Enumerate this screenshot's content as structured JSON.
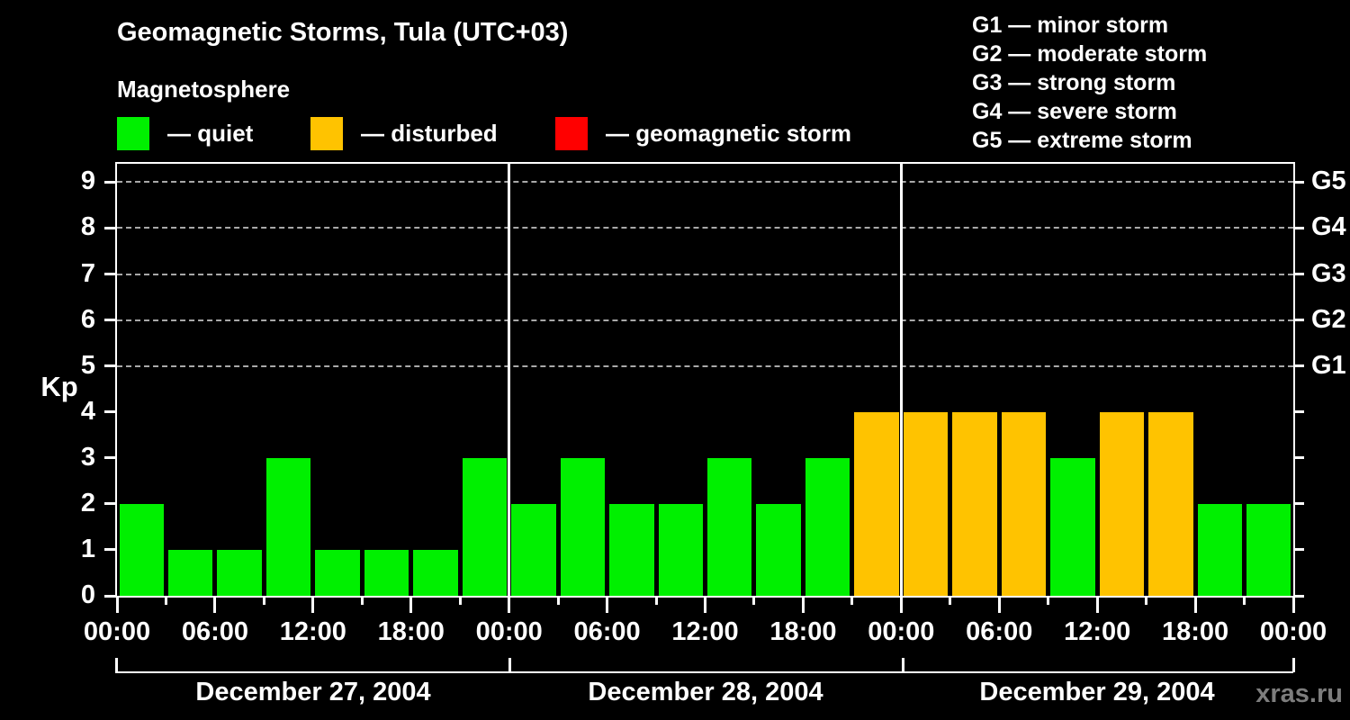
{
  "title": "Geomagnetic Storms, Tula (UTC+03)",
  "subtitle": "Magnetosphere",
  "legend": {
    "items": [
      {
        "label": "— quiet",
        "state": "quiet",
        "color": "#00f000"
      },
      {
        "label": "— disturbed",
        "state": "disturbed",
        "color": "#ffc300"
      },
      {
        "label": "— geomagnetic storm",
        "state": "storm",
        "color": "#ff0000"
      }
    ]
  },
  "g_scale_legend": [
    "G1 — minor storm",
    "G2 — moderate storm",
    "G3 — strong storm",
    "G4 — severe storm",
    "G5 — extreme storm"
  ],
  "watermark": "xras.ru",
  "chart_data": {
    "type": "bar",
    "title": "Geomagnetic Storms, Tula (UTC+03)",
    "ylabel": "Kp",
    "ylim": [
      0,
      9.4
    ],
    "yticks": [
      0,
      1,
      2,
      3,
      4,
      5,
      6,
      7,
      8,
      9
    ],
    "gridlines_kp": [
      5,
      6,
      7,
      8,
      9
    ],
    "grid": "dashed horizontal at G-storm levels only",
    "right_axis_labels": [
      {
        "label": "G1",
        "kp": 5
      },
      {
        "label": "G2",
        "kp": 6
      },
      {
        "label": "G3",
        "kp": 7
      },
      {
        "label": "G4",
        "kp": 8
      },
      {
        "label": "G5",
        "kp": 9
      }
    ],
    "x_tick_labels": [
      "00:00",
      "06:00",
      "12:00",
      "18:00",
      "00:00",
      "06:00",
      "12:00",
      "18:00",
      "00:00",
      "06:00",
      "12:00",
      "18:00",
      "00:00"
    ],
    "hours_per_bar": 3,
    "days": [
      {
        "date": "December 27, 2004",
        "values": [
          2,
          1,
          1,
          3,
          1,
          1,
          1,
          3
        ],
        "states": [
          "quiet",
          "quiet",
          "quiet",
          "quiet",
          "quiet",
          "quiet",
          "quiet",
          "quiet"
        ]
      },
      {
        "date": "December 28, 2004",
        "values": [
          2,
          3,
          2,
          2,
          3,
          2,
          3,
          4
        ],
        "states": [
          "quiet",
          "quiet",
          "quiet",
          "quiet",
          "quiet",
          "quiet",
          "quiet",
          "disturbed"
        ]
      },
      {
        "date": "December 29, 2004",
        "values": [
          4,
          4,
          4,
          3,
          4,
          4,
          2,
          2
        ],
        "states": [
          "disturbed",
          "disturbed",
          "disturbed",
          "quiet",
          "disturbed",
          "disturbed",
          "quiet",
          "quiet"
        ]
      }
    ],
    "colors": {
      "quiet": "#00f000",
      "disturbed": "#ffc300",
      "storm": "#ff0000"
    }
  }
}
